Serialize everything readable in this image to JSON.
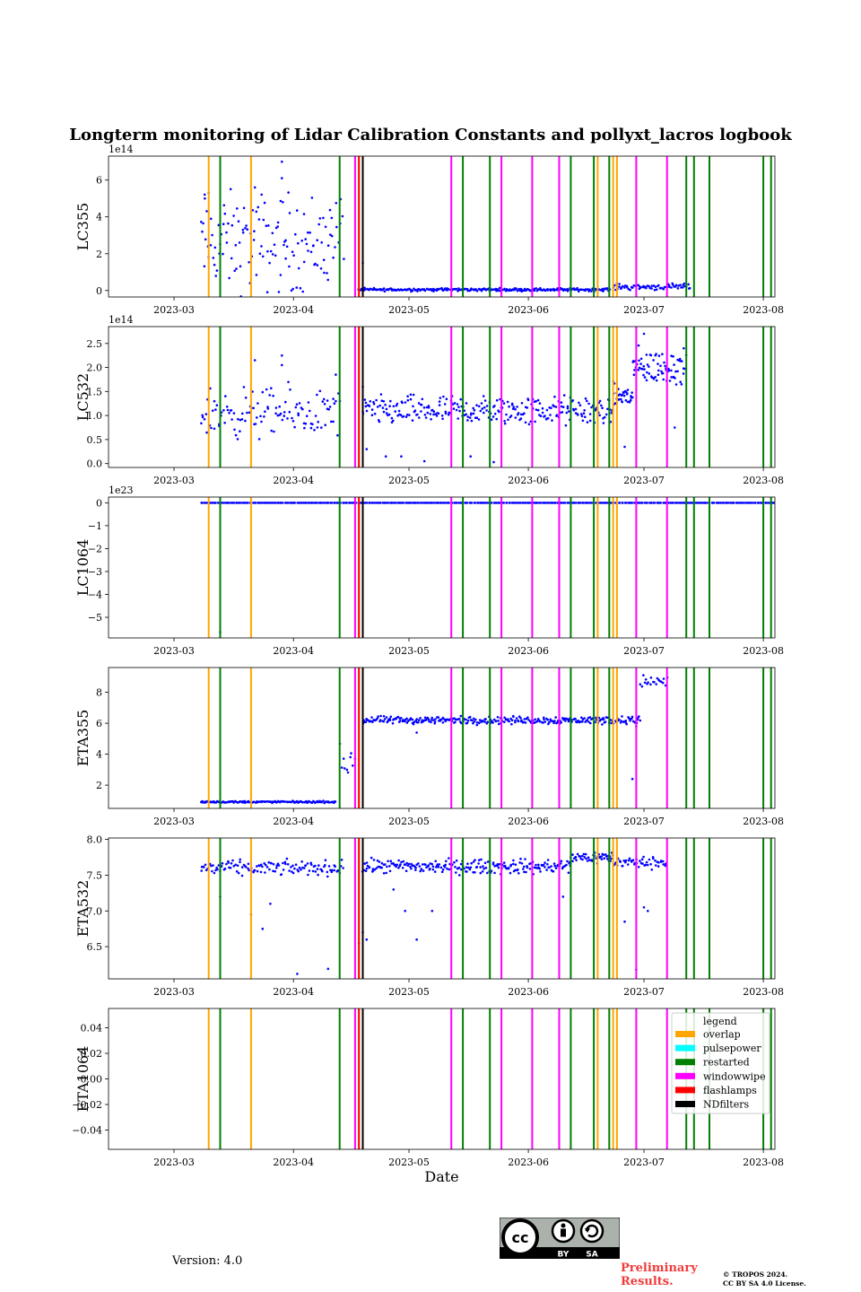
{
  "figure": {
    "title": "Longterm monitoring of Lidar Calibration Constants and pollyxt_lacros logbook",
    "version": "Version: 4.0",
    "preliminary": [
      "Preliminary",
      "Results."
    ],
    "copyright": [
      "© TROPOS 2024.",
      "CC BY SA 4.0 License."
    ],
    "license_badge": {
      "icon": "cc-by-sa-icon",
      "labels": [
        "BY",
        "SA"
      ]
    }
  },
  "chart_data": {
    "type": "scatter",
    "xlabel": "Date",
    "x_ticks": [
      "2023-03",
      "2023-04",
      "2023-05",
      "2023-06",
      "2023-07",
      "2023-08"
    ],
    "xlim": [
      "2023-02-12",
      "2023-08-04"
    ],
    "point_color": "#0000ff",
    "legend": {
      "title": "legend",
      "placement": "top-right of last panel",
      "entries": [
        {
          "label": "overlap",
          "color": "#ffa500"
        },
        {
          "label": "pulsepower",
          "color": "#00ffff"
        },
        {
          "label": "restarted",
          "color": "#008000"
        },
        {
          "label": "windowwipe",
          "color": "#ff00ff"
        },
        {
          "label": "flashlamps",
          "color": "#ff0000"
        },
        {
          "label": "NDfilters",
          "color": "#000000"
        }
      ]
    },
    "events": {
      "overlap": [
        "2023-03-10",
        "2023-03-21",
        "2023-04-18",
        "2023-06-19",
        "2023-06-23",
        "2023-06-24",
        "2023-07-18"
      ],
      "restarted": [
        "2023-03-13",
        "2023-04-13",
        "2023-05-15",
        "2023-05-22",
        "2023-06-12",
        "2023-06-18",
        "2023-06-22",
        "2023-07-12",
        "2023-07-14",
        "2023-07-18",
        "2023-08-01",
        "2023-08-03"
      ],
      "windowwipe": [
        "2023-04-17",
        "2023-05-12",
        "2023-05-25",
        "2023-06-02",
        "2023-06-09",
        "2023-06-29",
        "2023-07-07"
      ],
      "flashlamps": [
        "2023-04-18"
      ],
      "NDfilters": [
        "2023-04-19"
      ]
    },
    "panels": [
      {
        "ylabel": "LC355",
        "offset": "1e14",
        "ylim": [
          -0.35,
          7.3
        ],
        "yticks": [
          0,
          2,
          4,
          6
        ],
        "tick_labels": [
          "0",
          "2",
          "4",
          "6"
        ],
        "segments": [
          {
            "start": "2023-03-08",
            "end": "2023-04-11",
            "mean": 2.6,
            "spread": 1.3,
            "n": 130
          },
          {
            "start": "2023-04-11",
            "end": "2023-04-14",
            "mean": 3.3,
            "spread": 0.9,
            "n": 10
          },
          {
            "start": "2023-04-18",
            "end": "2023-06-22",
            "mean": 0.05,
            "spread": 0.04,
            "n": 260
          },
          {
            "start": "2023-06-23",
            "end": "2023-07-13",
            "mean": 0.2,
            "spread": 0.08,
            "n": 70
          }
        ],
        "outliers": [
          [
            "2023-03-09",
            5.0
          ],
          [
            "2023-03-10",
            5.3
          ],
          [
            "2023-03-22",
            5.6
          ],
          [
            "2023-03-29",
            7.0
          ],
          [
            "2023-03-29",
            6.1
          ],
          [
            "2023-04-19",
            1.5
          ]
        ]
      },
      {
        "ylabel": "LC532",
        "offset": "1e14",
        "ylim": [
          -0.08,
          2.85
        ],
        "yticks": [
          0,
          0.5,
          1,
          1.5,
          2,
          2.5
        ],
        "tick_labels": [
          "0.0",
          "0.5",
          "1.0",
          "1.5",
          "2.0",
          "2.5"
        ],
        "segments": [
          {
            "start": "2023-03-08",
            "end": "2023-04-13",
            "mean": 1.05,
            "spread": 0.25,
            "n": 120
          },
          {
            "start": "2023-04-19",
            "end": "2023-06-23",
            "mean": 1.1,
            "spread": 0.15,
            "n": 280
          },
          {
            "start": "2023-06-23",
            "end": "2023-06-28",
            "mean": 1.4,
            "spread": 0.12,
            "n": 35
          },
          {
            "start": "2023-06-28",
            "end": "2023-07-12",
            "mean": 2.0,
            "spread": 0.18,
            "n": 80
          }
        ],
        "outliers": [
          [
            "2023-03-29",
            2.25
          ],
          [
            "2023-03-29",
            2.05
          ],
          [
            "2023-03-22",
            2.15
          ],
          [
            "2023-04-12",
            1.85
          ],
          [
            "2023-04-19",
            1.6
          ],
          [
            "2023-04-20",
            0.3
          ],
          [
            "2023-04-25",
            0.15
          ],
          [
            "2023-04-29",
            0.15
          ],
          [
            "2023-05-05",
            0.05
          ],
          [
            "2023-05-17",
            0.15
          ],
          [
            "2023-05-23",
            0.03
          ],
          [
            "2023-06-26",
            0.35
          ],
          [
            "2023-07-01",
            2.7
          ],
          [
            "2023-07-09",
            0.75
          ]
        ]
      },
      {
        "ylabel": "LC1064",
        "offset": "1e23",
        "ylim": [
          -5.9,
          0.25
        ],
        "yticks": [
          -5,
          -4,
          -3,
          -2,
          -1,
          0
        ],
        "tick_labels": [
          "−5",
          "−4",
          "−3",
          "−2",
          "−1",
          "0"
        ],
        "segments": [
          {
            "start": "2023-03-08",
            "end": "2023-08-05",
            "mean": 0.0,
            "spread": 0.0,
            "n": 380
          }
        ],
        "outliers": [
          [
            "2023-03-13",
            -5.65
          ]
        ]
      },
      {
        "ylabel": "ETA355",
        "offset": "",
        "ylim": [
          0.5,
          9.6
        ],
        "yticks": [
          2,
          4,
          6,
          8
        ],
        "tick_labels": [
          "2",
          "4",
          "6",
          "8"
        ],
        "segments": [
          {
            "start": "2023-03-08",
            "end": "2023-04-12",
            "mean": 0.92,
            "spread": 0.03,
            "n": 140
          },
          {
            "start": "2023-04-13",
            "end": "2023-04-17",
            "mean": 3.5,
            "spread": 0.5,
            "n": 10
          },
          {
            "start": "2023-04-19",
            "end": "2023-06-30",
            "mean": 6.2,
            "spread": 0.12,
            "n": 300
          },
          {
            "start": "2023-06-30",
            "end": "2023-07-07",
            "mean": 8.7,
            "spread": 0.25,
            "n": 20
          }
        ],
        "outliers": [
          [
            "2023-05-03",
            5.4
          ],
          [
            "2023-06-28",
            2.4
          ],
          [
            "2023-06-29",
            5.8
          ]
        ]
      },
      {
        "ylabel": "ETA532",
        "offset": "",
        "ylim": [
          6.05,
          8.02
        ],
        "yticks": [
          6.5,
          7.0,
          7.5,
          8.0
        ],
        "tick_labels": [
          "6.5",
          "7.0",
          "7.5",
          "8.0"
        ],
        "segments": [
          {
            "start": "2023-03-08",
            "end": "2023-04-14",
            "mean": 7.6,
            "spread": 0.05,
            "n": 130
          },
          {
            "start": "2023-04-19",
            "end": "2023-06-12",
            "mean": 7.62,
            "spread": 0.05,
            "n": 230
          },
          {
            "start": "2023-06-12",
            "end": "2023-06-23",
            "mean": 7.75,
            "spread": 0.04,
            "n": 50
          },
          {
            "start": "2023-06-23",
            "end": "2023-07-07",
            "mean": 7.68,
            "spread": 0.04,
            "n": 50
          }
        ],
        "outliers": [
          [
            "2023-03-13",
            7.2
          ],
          [
            "2023-03-21",
            6.95
          ],
          [
            "2023-03-26",
            7.1
          ],
          [
            "2023-03-24",
            6.75
          ],
          [
            "2023-04-02",
            6.12
          ],
          [
            "2023-04-10",
            6.19
          ],
          [
            "2023-04-18",
            6.55
          ],
          [
            "2023-04-19",
            6.7
          ],
          [
            "2023-04-20",
            6.6
          ],
          [
            "2023-04-27",
            7.3
          ],
          [
            "2023-04-30",
            7.0
          ],
          [
            "2023-05-03",
            6.6
          ],
          [
            "2023-05-07",
            7.0
          ],
          [
            "2023-06-10",
            7.2
          ],
          [
            "2023-06-26",
            6.85
          ],
          [
            "2023-06-29",
            6.18
          ],
          [
            "2023-07-01",
            7.05
          ],
          [
            "2023-07-02",
            7.0
          ]
        ]
      },
      {
        "ylabel": "ETA1064",
        "offset": "",
        "ylim": [
          -0.055,
          0.055
        ],
        "yticks": [
          -0.04,
          -0.02,
          0,
          0.02,
          0.04
        ],
        "tick_labels": [
          "−0.04",
          "−0.02",
          "0.00",
          "0.02",
          "0.04"
        ],
        "segments": [],
        "outliers": []
      }
    ]
  }
}
